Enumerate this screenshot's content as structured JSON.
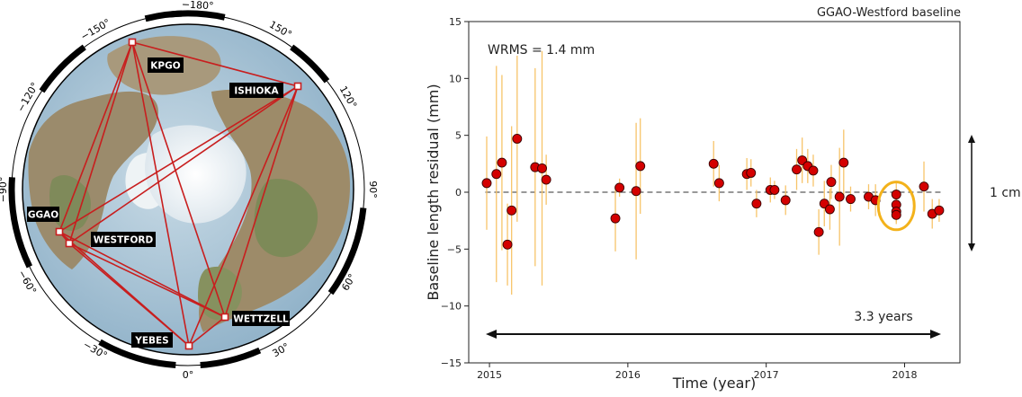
{
  "map": {
    "degree_labels": [
      "−180°",
      "−150°",
      "150°",
      "−120°",
      "120°",
      "−90°",
      "90°",
      "−60°",
      "60°",
      "−30°",
      "30°",
      "0°"
    ],
    "stations": [
      {
        "id": "kpgo",
        "label": "KPGO"
      },
      {
        "id": "ishioka",
        "label": "ISHIOKA"
      },
      {
        "id": "ggao",
        "label": "GGAO"
      },
      {
        "id": "westford",
        "label": "WESTFORD"
      },
      {
        "id": "wettzell",
        "label": "WETTZELL"
      },
      {
        "id": "yebes",
        "label": "YEBES"
      }
    ],
    "baselines": [
      [
        "kpgo",
        "ishioka"
      ],
      [
        "kpgo",
        "ggao"
      ],
      [
        "kpgo",
        "westford"
      ],
      [
        "kpgo",
        "wettzell"
      ],
      [
        "kpgo",
        "yebes"
      ],
      [
        "ishioka",
        "ggao"
      ],
      [
        "ishioka",
        "westford"
      ],
      [
        "ishioka",
        "wettzell"
      ],
      [
        "ishioka",
        "yebes"
      ],
      [
        "ggao",
        "westford"
      ],
      [
        "ggao",
        "wettzell"
      ],
      [
        "ggao",
        "yebes"
      ],
      [
        "westford",
        "wettzell"
      ],
      [
        "westford",
        "yebes"
      ],
      [
        "wettzell",
        "yebes"
      ]
    ],
    "colors": {
      "baseline": "#c81e1e",
      "ocean": "#a9c6da",
      "land": "#9c8a6b",
      "ice": "#eef2f4",
      "rim": "#000000"
    }
  },
  "chart_data": {
    "type": "scatter",
    "title": "GGAO-Westford baseline",
    "annotation": "WRMS = 1.4 mm",
    "span_label": "3.3 years",
    "scale_label": "1 cm",
    "xlabel": "Time (year)",
    "ylabel": "Baseline length residual (mm)",
    "xlim": [
      2014.85,
      2018.4
    ],
    "ylim": [
      -15,
      15
    ],
    "xticks": [
      2015,
      2016,
      2017,
      2018
    ],
    "yticks": [
      -15,
      -10,
      -5,
      0,
      5,
      10,
      15
    ],
    "grid": false,
    "colors": {
      "marker": "#d40000",
      "error_bar": "#f7c46a",
      "highlight": "#f3b21b",
      "zero_line": "#777777"
    },
    "points": [
      {
        "x": 2014.98,
        "y": 0.8,
        "err": 4.1
      },
      {
        "x": 2015.05,
        "y": 1.6,
        "err": 9.5
      },
      {
        "x": 2015.09,
        "y": 2.6,
        "err": 7.7
      },
      {
        "x": 2015.13,
        "y": -4.6,
        "err": 3.6
      },
      {
        "x": 2015.16,
        "y": -1.6,
        "err": 7.4
      },
      {
        "x": 2015.2,
        "y": 4.7,
        "err": 7.3
      },
      {
        "x": 2015.33,
        "y": 2.2,
        "err": 8.7
      },
      {
        "x": 2015.38,
        "y": 2.1,
        "err": 10.3
      },
      {
        "x": 2015.41,
        "y": 1.1,
        "err": 2.2
      },
      {
        "x": 2015.91,
        "y": -2.3,
        "err": 2.9
      },
      {
        "x": 2015.94,
        "y": 0.4,
        "err": 0.8
      },
      {
        "x": 2016.06,
        "y": 0.1,
        "err": 6.0
      },
      {
        "x": 2016.09,
        "y": 2.3,
        "err": 4.2
      },
      {
        "x": 2016.62,
        "y": 2.5,
        "err": 2.0
      },
      {
        "x": 2016.66,
        "y": 0.8,
        "err": 1.6
      },
      {
        "x": 2016.86,
        "y": 1.6,
        "err": 1.4
      },
      {
        "x": 2016.89,
        "y": 1.7,
        "err": 1.2
      },
      {
        "x": 2016.93,
        "y": -1.0,
        "err": 1.2
      },
      {
        "x": 2017.03,
        "y": 0.2,
        "err": 1.1
      },
      {
        "x": 2017.06,
        "y": 0.2,
        "err": 0.8
      },
      {
        "x": 2017.14,
        "y": -0.7,
        "err": 1.3
      },
      {
        "x": 2017.22,
        "y": 2.0,
        "err": 1.8
      },
      {
        "x": 2017.26,
        "y": 2.8,
        "err": 2.0
      },
      {
        "x": 2017.3,
        "y": 2.3,
        "err": 1.5
      },
      {
        "x": 2017.34,
        "y": 1.9,
        "err": 1.4
      },
      {
        "x": 2017.38,
        "y": -3.5,
        "err": 2.0
      },
      {
        "x": 2017.42,
        "y": -1.0,
        "err": 2.0
      },
      {
        "x": 2017.46,
        "y": -1.5,
        "err": 1.8
      },
      {
        "x": 2017.47,
        "y": 0.9,
        "err": 1.5
      },
      {
        "x": 2017.53,
        "y": -0.4,
        "err": 4.3
      },
      {
        "x": 2017.56,
        "y": 2.6,
        "err": 2.9
      },
      {
        "x": 2017.61,
        "y": -0.6,
        "err": 1.1
      },
      {
        "x": 2017.74,
        "y": -0.4,
        "err": 1.1
      },
      {
        "x": 2017.79,
        "y": -0.7,
        "err": 1.4
      },
      {
        "x": 2017.94,
        "y": -0.2,
        "err": 1.0
      },
      {
        "x": 2017.94,
        "y": -1.1,
        "err": 0.8
      },
      {
        "x": 2017.94,
        "y": -1.7,
        "err": 0.9
      },
      {
        "x": 2017.94,
        "y": -2.0,
        "err": 0.8
      },
      {
        "x": 2018.14,
        "y": 0.5,
        "err": 2.2
      },
      {
        "x": 2018.2,
        "y": -1.9,
        "err": 1.3
      },
      {
        "x": 2018.25,
        "y": -1.6,
        "err": 1.0
      }
    ],
    "highlight": {
      "x": 2017.94,
      "y": -1.2,
      "rx": 0.13,
      "ry": 2.1
    }
  }
}
